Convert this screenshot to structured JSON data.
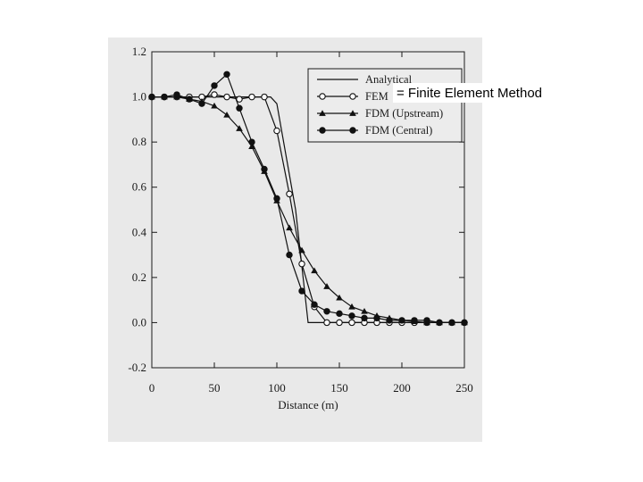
{
  "chart_data": {
    "type": "line",
    "xlabel": "Distance (m)",
    "x_ticks": [
      "0",
      "50",
      "100",
      "150",
      "200",
      "250"
    ],
    "y_ticks": [
      "-0.2",
      "0.0",
      "0.2",
      "0.4",
      "0.6",
      "0.8",
      "1.0",
      "1.2"
    ],
    "xlim": [
      0,
      250
    ],
    "ylim": [
      -0.2,
      1.2
    ],
    "grid": false,
    "legend_position": "top-right",
    "series": [
      {
        "name": "Analytical",
        "marker": "none",
        "x": [
          0,
          95,
          100,
          115,
          125,
          250
        ],
        "y": [
          1.0,
          1.0,
          0.97,
          0.5,
          0.0,
          0.0
        ]
      },
      {
        "name": "FEM",
        "marker": "open-circle",
        "x": [
          0,
          10,
          20,
          30,
          40,
          50,
          60,
          70,
          80,
          90,
          100,
          110,
          120,
          130,
          140,
          150,
          160,
          170,
          180,
          190,
          200,
          210,
          220,
          230,
          240,
          250
        ],
        "y": [
          1.0,
          1.0,
          1.0,
          1.0,
          1.0,
          1.01,
          1.0,
          0.99,
          1.0,
          1.0,
          0.85,
          0.57,
          0.26,
          0.07,
          0.0,
          0.0,
          0.0,
          0.0,
          0.0,
          0.0,
          0.0,
          0.0,
          0.0,
          0.0,
          0.0,
          0.0
        ]
      },
      {
        "name": "FDM (Upstream)",
        "marker": "filled-triangle",
        "x": [
          0,
          10,
          20,
          30,
          40,
          50,
          60,
          70,
          80,
          90,
          100,
          110,
          120,
          130,
          140,
          150,
          160,
          170,
          180,
          190,
          200,
          210,
          220,
          230,
          240,
          250
        ],
        "y": [
          1.0,
          1.0,
          1.0,
          0.99,
          0.98,
          0.96,
          0.92,
          0.86,
          0.78,
          0.67,
          0.54,
          0.42,
          0.32,
          0.23,
          0.16,
          0.11,
          0.07,
          0.05,
          0.03,
          0.02,
          0.01,
          0.005,
          0.0,
          0.0,
          0.0,
          0.0
        ]
      },
      {
        "name": "FDM (Central)",
        "marker": "filled-circle",
        "x": [
          0,
          10,
          20,
          30,
          40,
          50,
          60,
          70,
          80,
          90,
          100,
          110,
          120,
          130,
          140,
          150,
          160,
          170,
          180,
          190,
          200,
          210,
          220,
          230,
          240,
          250
        ],
        "y": [
          1.0,
          1.0,
          1.01,
          0.99,
          0.97,
          1.05,
          1.1,
          0.95,
          0.8,
          0.68,
          0.55,
          0.3,
          0.14,
          0.08,
          0.05,
          0.04,
          0.03,
          0.02,
          0.02,
          0.01,
          0.01,
          0.01,
          0.01,
          0.0,
          0.0,
          0.0
        ]
      }
    ]
  },
  "annotation": {
    "text": "= Finite Element Method"
  }
}
